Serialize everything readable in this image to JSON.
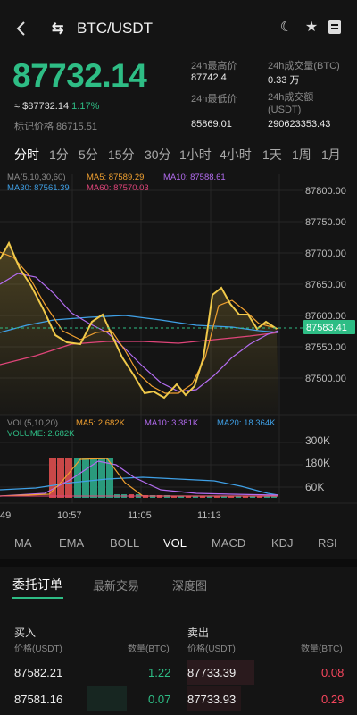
{
  "header": {
    "pair": "BTC/USDT",
    "back_icon": "chevron-left-icon",
    "icons": [
      "moon-icon",
      "star-icon",
      "book-icon"
    ]
  },
  "ticker": {
    "last_price": "87732.14",
    "approx": "≈ $87732.14",
    "change_pct": "1.17%",
    "mark_price": "标记价格 86715.51",
    "stats": [
      {
        "label": "24h最高价",
        "value": "87742.4"
      },
      {
        "label": "24h成交量(BTC)",
        "value": "0.33 万"
      },
      {
        "label": "24h最低价",
        "value": "85869.01"
      },
      {
        "label": "24h成交额\n(USDT)",
        "value": "290623353.43"
      }
    ]
  },
  "timeframes": [
    "分时",
    "1分",
    "5分",
    "15分",
    "30分",
    "1小时",
    "4小时",
    "1天",
    "1周",
    "1月"
  ],
  "active_timeframe": "分时",
  "main_chart": {
    "legend": {
      "ma_label": "MA(5,10,30,60)",
      "ma5": "MA5: 87589.29",
      "ma10": "MA10: 87588.61",
      "ma30": "MA30: 87561.39",
      "ma60": "MA60: 87570.03"
    },
    "y_ticks": [
      "87800.00",
      "87750.00",
      "87700.00",
      "87650.00",
      "87600.00",
      "87550.00",
      "87500.00"
    ],
    "current_price_label": "87583.41",
    "colors": {
      "price": "#f0c94a",
      "ma5": "#f0a030",
      "ma10": "#b36cf0",
      "ma30": "#3fa0e6",
      "ma60": "#e0457a",
      "current": "#2ebd85"
    }
  },
  "vol_chart": {
    "legend": {
      "vol_label": "VOL(5,10,20)",
      "ma5": "MA5: 2.682K",
      "ma10": "MA10: 3.381K",
      "ma20": "MA20: 18.364K",
      "volume": "VOLUME: 2.682K"
    },
    "y_ticks": [
      "300K",
      "180K",
      "60K"
    ]
  },
  "time_axis": [
    "49",
    "10:57",
    "11:05",
    "11:13"
  ],
  "indicators": [
    "MA",
    "EMA",
    "BOLL",
    "VOL",
    "MACD",
    "KDJ",
    "RSI"
  ],
  "active_indicator": "VOL",
  "tabs": [
    "委托订单",
    "最新交易",
    "深度图"
  ],
  "active_tab": "委托订单",
  "orderbook": {
    "buy_title": "买入",
    "sell_title": "卖出",
    "price_header": "价格(USDT)",
    "qty_header": "数量(BTC)",
    "bids": [
      {
        "price": "87582.21",
        "qty": "1.22"
      },
      {
        "price": "87581.16",
        "qty": "0.07"
      }
    ],
    "asks": [
      {
        "price": "87733.39",
        "qty": "0.08"
      },
      {
        "price": "87733.93",
        "qty": "0.29"
      }
    ]
  }
}
